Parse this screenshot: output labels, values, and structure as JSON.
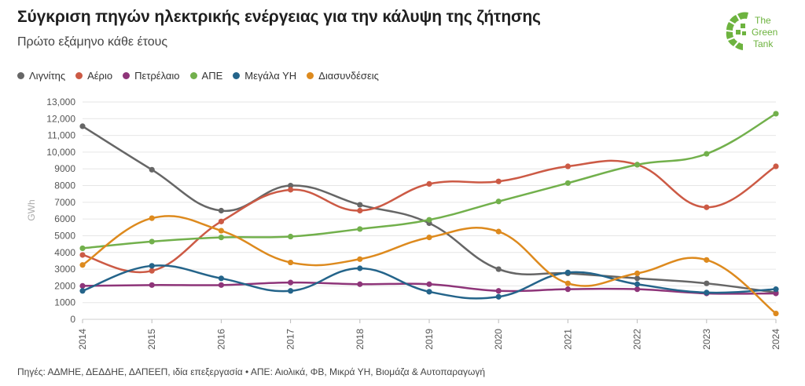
{
  "title": "Σύγκριση πηγών ηλεκτρικής ενέργειας για την κάλυψη της ζήτησης",
  "subtitle": "Πρώτο εξάμηνο κάθε έτους",
  "logo": {
    "line1": "The",
    "line2": "Green",
    "line3": "Tank",
    "color": "#6db33f"
  },
  "footer": "Πηγές: ΑΔΜΗΕ, ΔΕΔΔΗΕ, ΔΑΠΕΕΠ, ιδία επεξεργασία • ΑΠΕ: Αιολικά, ΦΒ, Μικρά ΥΗ, Βιομάζα & Αυτοπαραγωγή",
  "chart_data": {
    "type": "line",
    "ylabel": "GWh",
    "xlabel": "",
    "x": [
      "2014",
      "2015",
      "2016",
      "2017",
      "2018",
      "2019",
      "2020",
      "2021",
      "2022",
      "2023",
      "2024"
    ],
    "ylim": [
      0,
      13000
    ],
    "yticks": [
      0,
      1000,
      2000,
      3000,
      4000,
      5000,
      6000,
      7000,
      8000,
      9000,
      10000,
      11000,
      12000,
      13000
    ],
    "ytick_labels": [
      "0",
      "1000",
      "2000",
      "3000",
      "4000",
      "5000",
      "6000",
      "7000",
      "8000",
      "9000",
      "10,000",
      "11,000",
      "12,000",
      "13,000"
    ],
    "grid": true,
    "legend_position": "top-left",
    "series": [
      {
        "name": "Λιγνίτης",
        "color": "#666666",
        "values": [
          11550,
          8950,
          6500,
          8000,
          6850,
          5750,
          3000,
          2750,
          2450,
          2150,
          1600
        ]
      },
      {
        "name": "Αέριο",
        "color": "#cc5a45",
        "values": [
          3850,
          2900,
          5850,
          7750,
          6500,
          8100,
          8250,
          9150,
          9250,
          6700,
          9150
        ]
      },
      {
        "name": "Πετρέλαιο",
        "color": "#8e3579",
        "values": [
          2000,
          2050,
          2050,
          2200,
          2100,
          2100,
          1700,
          1800,
          1800,
          1550,
          1550
        ]
      },
      {
        "name": "ΑΠΕ",
        "color": "#72b04c",
        "values": [
          4250,
          4650,
          4900,
          4950,
          5400,
          5950,
          7050,
          8150,
          9250,
          9900,
          12300
        ]
      },
      {
        "name": "Μεγάλα ΥΗ",
        "color": "#24648a",
        "values": [
          1700,
          3200,
          2450,
          1700,
          3050,
          1650,
          1350,
          2800,
          2100,
          1600,
          1800
        ]
      },
      {
        "name": "Διασυνδέσεις",
        "color": "#dd8a1e",
        "values": [
          3250,
          6050,
          5300,
          3400,
          3600,
          4900,
          5250,
          2150,
          2750,
          3550,
          350
        ]
      }
    ]
  }
}
